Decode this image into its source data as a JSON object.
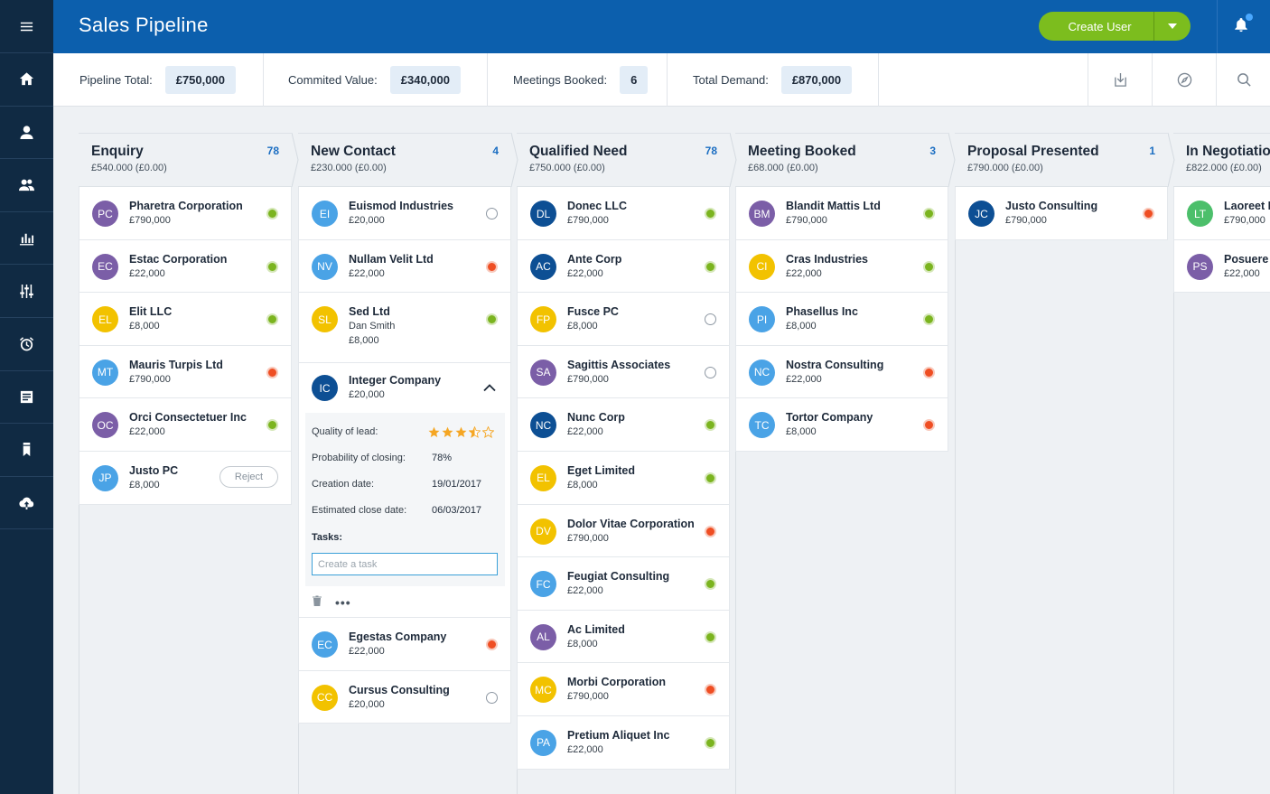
{
  "app": {
    "title": "Sales Pipeline"
  },
  "header": {
    "create_user_label": "Create User",
    "notifications_icon": "bell-icon",
    "has_unread": true
  },
  "sidebar": {
    "items": [
      {
        "name": "menu",
        "icon": "hamburger-icon"
      },
      {
        "name": "home",
        "icon": "home-icon"
      },
      {
        "name": "user",
        "icon": "user-icon"
      },
      {
        "name": "users",
        "icon": "users-icon"
      },
      {
        "name": "reports",
        "icon": "bar-chart-icon"
      },
      {
        "name": "filters",
        "icon": "sliders-icon"
      },
      {
        "name": "alarms",
        "icon": "alarm-clock-icon"
      },
      {
        "name": "notes",
        "icon": "notes-icon"
      },
      {
        "name": "bookmarks",
        "icon": "bookmark-icon"
      },
      {
        "name": "upload",
        "icon": "cloud-upload-icon"
      }
    ]
  },
  "metrics": [
    {
      "label": "Pipeline Total:",
      "value": "£750,000"
    },
    {
      "label": "Commited Value:",
      "value": "£340,000"
    },
    {
      "label": "Meetings Booked:",
      "value": "6"
    },
    {
      "label": "Total Demand:",
      "value": "£870,000"
    }
  ],
  "toolbar_icons": [
    "download-icon",
    "compass-icon",
    "search-icon"
  ],
  "colors": {
    "sidebar": "#102a43",
    "topbar": "#0c5fad",
    "accent_green": "#7cbd1e",
    "status_green": "#7bb41f",
    "status_red": "#ef4e23",
    "avatar_purple": "#7b5ea7",
    "avatar_yellow": "#f2c200",
    "avatar_lightblue": "#4aa3e6",
    "avatar_navy": "#0d4f94",
    "avatar_green": "#4cbf6b"
  },
  "columns": [
    {
      "title": "Enquiry",
      "subtitle": "£540.000 (£0.00)",
      "count": "78",
      "cards": [
        {
          "initials": "PC",
          "color": "purple",
          "name": "Pharetra Corporation",
          "value": "£790,000",
          "status": "green"
        },
        {
          "initials": "EC",
          "color": "purple",
          "name": "Estac Corporation",
          "value": "£22,000",
          "status": "green"
        },
        {
          "initials": "EL",
          "color": "yellow",
          "name": "Elit LLC",
          "value": "£8,000",
          "status": "green"
        },
        {
          "initials": "MT",
          "color": "lightblue",
          "name": "Mauris Turpis Ltd",
          "value": "£790,000",
          "status": "red"
        },
        {
          "initials": "OC",
          "color": "purple",
          "name": "Orci Consectetuer Inc",
          "value": "£22,000",
          "status": "green"
        },
        {
          "initials": "JP",
          "color": "lightblue",
          "name": "Justo PC",
          "value": "£8,000",
          "status": "reject",
          "action_label": "Reject"
        }
      ]
    },
    {
      "title": "New Contact",
      "subtitle": "£230.000 (£0.00)",
      "count": "4",
      "cards": [
        {
          "initials": "EI",
          "color": "lightblue",
          "name": "Euismod Industries",
          "value": "£20,000",
          "status": "empty"
        },
        {
          "initials": "NV",
          "color": "lightblue",
          "name": "Nullam Velit Ltd",
          "value": "£22,000",
          "status": "red"
        },
        {
          "initials": "SL",
          "color": "yellow",
          "name": "Sed Ltd",
          "contact": "Dan Smith",
          "value": "£8,000",
          "status": "green"
        }
      ],
      "expanded": {
        "initials": "IC",
        "color": "navy",
        "name": "Integer Company",
        "value": "£20,000",
        "quality_label": "Quality of lead:",
        "rating": 3.5,
        "rating_max": 5,
        "probability_label": "Probability of closing:",
        "probability": "78%",
        "created_label": "Creation date:",
        "created": "19/01/2017",
        "close_label": "Estimated close date:",
        "close": "06/03/2017",
        "tasks_label": "Tasks:",
        "task_placeholder": "Create a task",
        "more_label": "•••"
      },
      "cards_after": [
        {
          "initials": "EC",
          "color": "lightblue",
          "name": "Egestas Company",
          "value": "£22,000",
          "status": "red"
        },
        {
          "initials": "CC",
          "color": "yellow",
          "name": "Cursus Consulting",
          "value": "£20,000",
          "status": "empty"
        }
      ]
    },
    {
      "title": "Qualified Need",
      "subtitle": "£750.000 (£0.00)",
      "count": "78",
      "cards": [
        {
          "initials": "DL",
          "color": "navy",
          "name": "Donec LLC",
          "value": "£790,000",
          "status": "green"
        },
        {
          "initials": "AC",
          "color": "navy",
          "name": "Ante Corp",
          "value": "£22,000",
          "status": "green"
        },
        {
          "initials": "FP",
          "color": "yellow",
          "name": "Fusce PC",
          "value": "£8,000",
          "status": "empty"
        },
        {
          "initials": "SA",
          "color": "purple",
          "name": "Sagittis Associates",
          "value": "£790,000",
          "status": "empty"
        },
        {
          "initials": "NC",
          "color": "navy",
          "name": "Nunc Corp",
          "value": "£22,000",
          "status": "green"
        },
        {
          "initials": "EL",
          "color": "yellow",
          "name": "Eget Limited",
          "value": "£8,000",
          "status": "green"
        },
        {
          "initials": "DV",
          "color": "yellow",
          "name": "Dolor Vitae Corporation",
          "value": "£790,000",
          "status": "red"
        },
        {
          "initials": "FC",
          "color": "lightblue",
          "name": "Feugiat Consulting",
          "value": "£22,000",
          "status": "green"
        },
        {
          "initials": "AL",
          "color": "purple",
          "name": "Ac Limited",
          "value": "£8,000",
          "status": "green"
        },
        {
          "initials": "MC",
          "color": "yellow",
          "name": "Morbi Corporation",
          "value": "£790,000",
          "status": "red"
        },
        {
          "initials": "PA",
          "color": "lightblue",
          "name": "Pretium Aliquet Inc",
          "value": "£22,000",
          "status": "green"
        }
      ]
    },
    {
      "title": "Meeting Booked",
      "subtitle": "£68.000 (£0.00)",
      "count": "3",
      "cards": [
        {
          "initials": "BM",
          "color": "purple",
          "name": "Blandit Mattis Ltd",
          "value": "£790,000",
          "status": "green"
        },
        {
          "initials": "CI",
          "color": "yellow",
          "name": "Cras Industries",
          "value": "£22,000",
          "status": "green"
        },
        {
          "initials": "PI",
          "color": "lightblue",
          "name": "Phasellus Inc",
          "value": "£8,000",
          "status": "green"
        },
        {
          "initials": "NC",
          "color": "lightblue",
          "name": "Nostra Consulting",
          "value": "£22,000",
          "status": "red"
        },
        {
          "initials": "TC",
          "color": "lightblue",
          "name": "Tortor Company",
          "value": "£8,000",
          "status": "red"
        }
      ]
    },
    {
      "title": "Proposal Presented",
      "subtitle": "£790.000 (£0.00)",
      "count": "1",
      "cards": [
        {
          "initials": "JC",
          "color": "navy",
          "name": "Justo Consulting",
          "value": "£790,000",
          "status": "red"
        }
      ]
    },
    {
      "title": "In Negotiation",
      "subtitle": "£822.000 (£0.00)",
      "count": "",
      "cards": [
        {
          "initials": "LT",
          "color": "green",
          "name": "Laoreet Ltd",
          "value": "£790,000",
          "status": "none"
        },
        {
          "initials": "PS",
          "color": "purple",
          "name": "Posuere Sed",
          "value": "£22,000",
          "status": "none"
        }
      ]
    }
  ]
}
